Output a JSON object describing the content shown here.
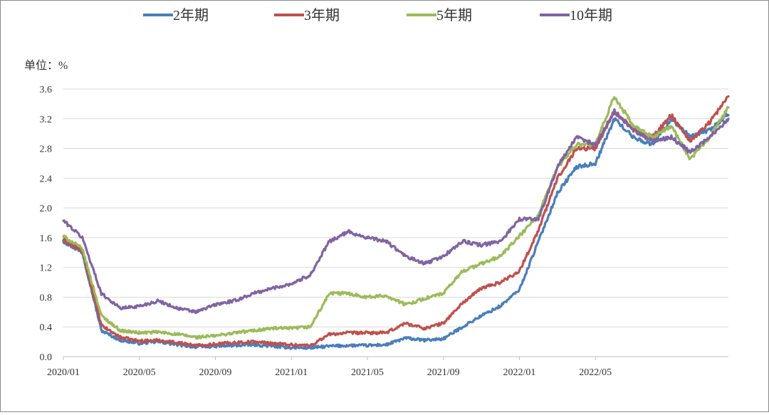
{
  "chart_data": {
    "type": "line",
    "unit_label": "单位：%",
    "ylim": [
      0.0,
      3.6
    ],
    "yticks": [
      "0.0",
      "0.4",
      "0.8",
      "1.2",
      "1.6",
      "2.0",
      "2.4",
      "2.8",
      "3.2",
      "3.6"
    ],
    "xlim": [
      "2020/01",
      "2022/12"
    ],
    "xticks": [
      "2020/01",
      "2020/05",
      "2020/09",
      "2021/01",
      "2021/05",
      "2021/09",
      "2022/01",
      "2022/05"
    ],
    "grid": true,
    "legend": "top",
    "x": [
      "2020/01",
      "2020/02",
      "2020/03",
      "2020/04",
      "2020/05",
      "2020/06",
      "2020/07",
      "2020/08",
      "2020/09",
      "2020/10",
      "2020/11",
      "2020/12",
      "2021/01",
      "2021/02",
      "2021/03",
      "2021/04",
      "2021/05",
      "2021/06",
      "2021/07",
      "2021/08",
      "2021/09",
      "2021/10",
      "2021/11",
      "2021/12",
      "2022/01",
      "2022/02",
      "2022/03",
      "2022/04",
      "2022/05",
      "2022/06",
      "2022/07",
      "2022/08",
      "2022/09",
      "2022/10",
      "2022/11",
      "2022/12"
    ],
    "series": [
      {
        "name": "2年期",
        "color": "#4a7ebb",
        "values": [
          1.55,
          1.4,
          0.35,
          0.22,
          0.18,
          0.2,
          0.16,
          0.13,
          0.14,
          0.15,
          0.16,
          0.14,
          0.12,
          0.12,
          0.14,
          0.15,
          0.15,
          0.16,
          0.25,
          0.22,
          0.24,
          0.4,
          0.55,
          0.68,
          0.9,
          1.55,
          2.2,
          2.55,
          2.6,
          3.2,
          2.95,
          2.85,
          3.2,
          2.95,
          3.05,
          3.25
        ]
      },
      {
        "name": "3年期",
        "color": "#c0504d",
        "values": [
          1.57,
          1.42,
          0.42,
          0.26,
          0.21,
          0.22,
          0.19,
          0.15,
          0.17,
          0.19,
          0.2,
          0.18,
          0.16,
          0.15,
          0.3,
          0.32,
          0.32,
          0.32,
          0.45,
          0.38,
          0.45,
          0.72,
          0.92,
          1.0,
          1.15,
          1.7,
          2.4,
          2.8,
          2.8,
          3.3,
          3.05,
          2.95,
          3.25,
          2.9,
          3.15,
          3.5
        ]
      },
      {
        "name": "5年期",
        "color": "#9bbb59",
        "values": [
          1.62,
          1.45,
          0.55,
          0.35,
          0.32,
          0.33,
          0.3,
          0.26,
          0.28,
          0.32,
          0.35,
          0.38,
          0.38,
          0.4,
          0.85,
          0.85,
          0.8,
          0.82,
          0.7,
          0.78,
          0.85,
          1.15,
          1.25,
          1.35,
          1.62,
          1.9,
          2.55,
          2.85,
          2.85,
          3.5,
          3.1,
          2.95,
          3.1,
          2.65,
          2.95,
          3.35
        ]
      },
      {
        "name": "10年期",
        "color": "#8064a2",
        "values": [
          1.83,
          1.6,
          0.85,
          0.65,
          0.68,
          0.75,
          0.65,
          0.6,
          0.7,
          0.75,
          0.85,
          0.92,
          0.98,
          1.1,
          1.55,
          1.68,
          1.6,
          1.55,
          1.35,
          1.25,
          1.35,
          1.55,
          1.5,
          1.55,
          1.85,
          1.85,
          2.55,
          2.95,
          2.85,
          3.3,
          3.05,
          2.9,
          2.95,
          2.75,
          2.95,
          3.2
        ]
      }
    ]
  }
}
